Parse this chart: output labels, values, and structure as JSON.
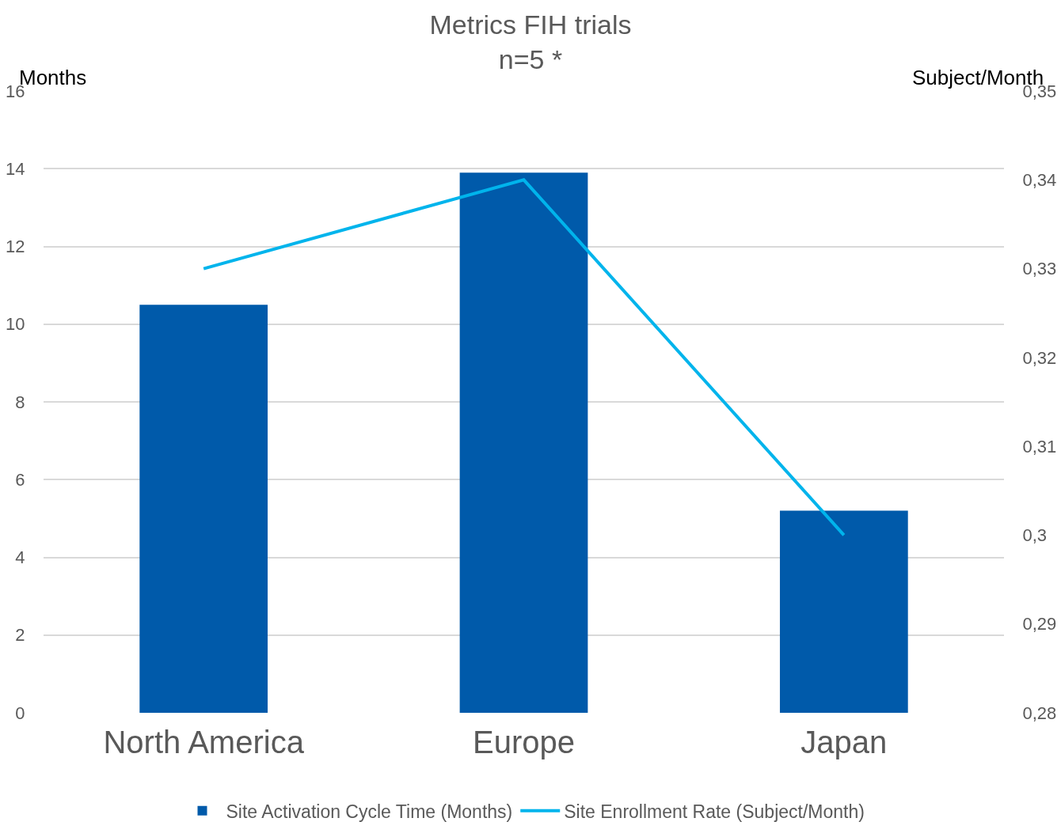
{
  "chart_data": {
    "type": "bar",
    "title": "Metrics FIH trials\nn=5 *",
    "ylabel": "Months",
    "y2label": "Subject/Month",
    "categories": [
      "North America",
      "Europe",
      "Japan"
    ],
    "series": [
      {
        "name": "Site Activation Cycle Time (Months)",
        "color": "#005aaa",
        "values": [
          10.5,
          13.9,
          5.2
        ]
      },
      {
        "name": "Site Enrollment Rate (Subject/Month)",
        "type": "line",
        "axis": "y2",
        "color": "#00b4ec",
        "values": [
          0.33,
          0.34,
          0.3
        ],
        "marker": "none",
        "line_style": "solid"
      }
    ],
    "ylim": [
      0,
      16
    ],
    "yticks": [
      0,
      2,
      4,
      6,
      8,
      10,
      12,
      14,
      16
    ],
    "y2lim": [
      0.28,
      0.35
    ],
    "y2ticks": [
      {
        "value": 0.28,
        "label": "0,28"
      },
      {
        "value": 0.29,
        "label": "0,29"
      },
      {
        "value": 0.3,
        "label": "0,3"
      },
      {
        "value": 0.31,
        "label": "0,31"
      },
      {
        "value": 0.32,
        "label": "0,32"
      },
      {
        "value": 0.33,
        "label": "0,33"
      },
      {
        "value": 0.34,
        "label": "0,34"
      },
      {
        "value": 0.35,
        "label": "0,35"
      }
    ],
    "grid": "y",
    "legend": "bottom"
  }
}
